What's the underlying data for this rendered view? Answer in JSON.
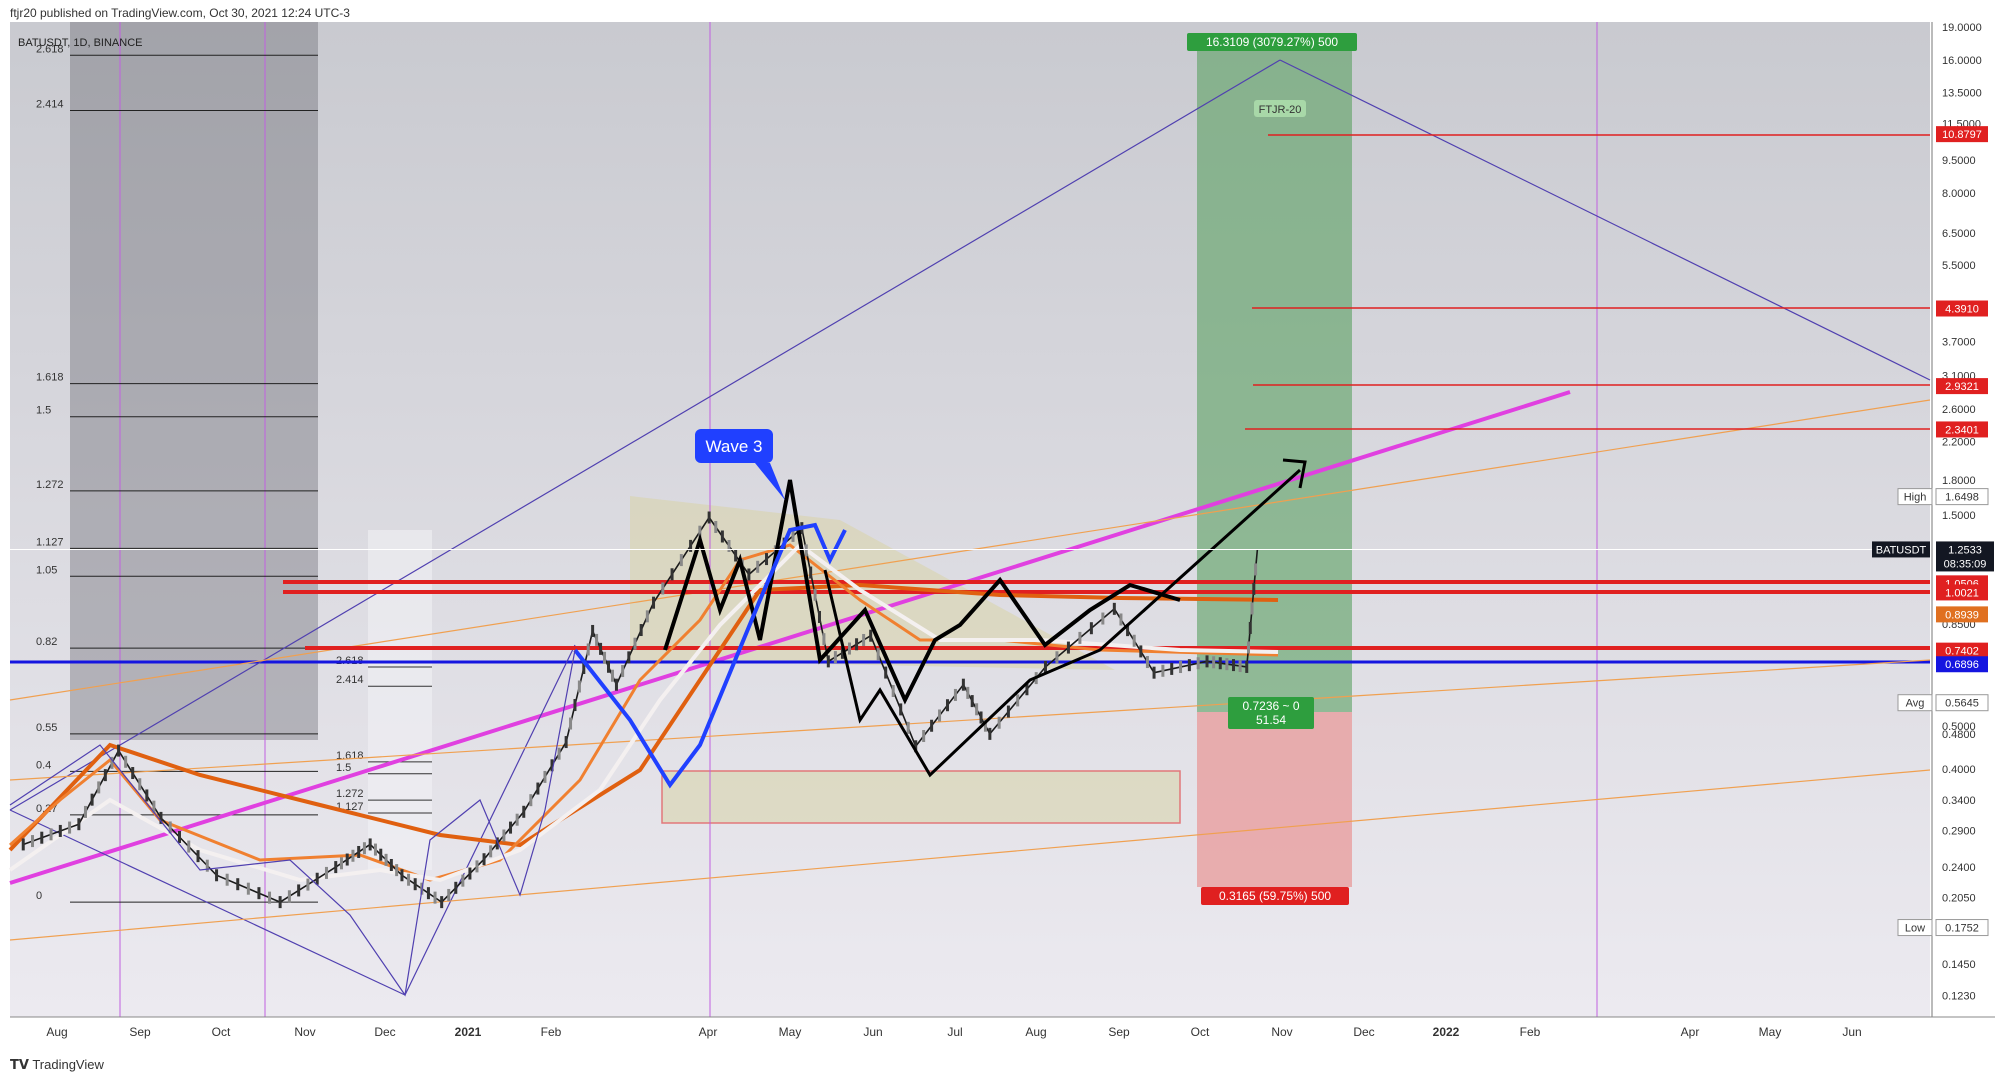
{
  "header": {
    "publisher_line": "ftjr20 published on TradingView.com, Oct 30, 2021 12:24 UTC-3"
  },
  "symbol_line": "BATUSDT, 1D, BINANCE",
  "footer": {
    "logo_text": "TradingView"
  },
  "colors": {
    "background_top": "#c9cad0",
    "background_bottom": "#e6e6ee",
    "fib_box": "#5b5b64",
    "target_green": "#5aa060",
    "stop_red": "#e89a9a",
    "magenta_trend": "#e040e0",
    "blue_support": "#1515e0",
    "red_level": "#e02020",
    "orange_ma": "#e07020",
    "purple_line": "#5040b0",
    "black_path": "#000000",
    "blue_wave": "#2040ff"
  },
  "chart_data": {
    "type": "line",
    "title": "",
    "scale": "log",
    "x_axis_labels": [
      "Aug",
      "Sep",
      "Oct",
      "Nov",
      "Dec",
      "2021",
      "Feb",
      "Apr",
      "May",
      "Jun",
      "Jul",
      "Aug",
      "Sep",
      "Oct",
      "Nov",
      "Dec",
      "2022",
      "Feb",
      "Apr",
      "May",
      "Jun"
    ],
    "y_axis_ticks": [
      "19.0000",
      "16.0000",
      "13.5000",
      "11.5000",
      "9.5000",
      "8.0000",
      "6.5000",
      "5.5000",
      "3.7000",
      "3.1000",
      "2.6000",
      "2.2000",
      "1.8000",
      "1.5000",
      "1.2533",
      "0.8500",
      "0.5000",
      "0.4800",
      "0.4000",
      "0.3400",
      "0.2900",
      "0.2400",
      "0.2050",
      "0.1450",
      "0.1230"
    ],
    "ylim": [
      0.11,
      19.5
    ],
    "price_badges": [
      {
        "label": "10.8797",
        "value": 10.8797,
        "color": "#e02020"
      },
      {
        "label": "4.3910",
        "value": 4.391,
        "color": "#e02020"
      },
      {
        "label": "2.9321",
        "value": 2.9321,
        "color": "#e02020"
      },
      {
        "label": "2.3401",
        "value": 2.3401,
        "color": "#e02020"
      },
      {
        "label": "1.0506",
        "value": 1.0506,
        "color": "#e02020"
      },
      {
        "label": "1.0021",
        "value": 1.0021,
        "color": "#e02020"
      },
      {
        "label": "0.8939",
        "value": 0.8939,
        "color": "#e07020"
      },
      {
        "label": "0.7402",
        "value": 0.7402,
        "color": "#e02020"
      },
      {
        "label": "0.6896",
        "value": 0.6896,
        "color": "#1515e0"
      }
    ],
    "last_price": {
      "symbol": "BATUSDT",
      "value": "1.2533",
      "countdown": "08:35:09"
    },
    "high": {
      "label": "High",
      "value": "1.6498"
    },
    "avg": {
      "label": "Avg",
      "value": "0.5645"
    },
    "low": {
      "label": "Low",
      "value": "0.1752"
    },
    "fib_levels_left": [
      {
        "label": "2.618",
        "value": 16.4
      },
      {
        "label": "2.414",
        "value": 12.3
      },
      {
        "label": "1.618",
        "value": 2.97
      },
      {
        "label": "1.5",
        "value": 2.5
      },
      {
        "label": "1.272",
        "value": 1.7
      },
      {
        "label": "1.127",
        "value": 1.26
      },
      {
        "label": "1.05",
        "value": 1.09
      },
      {
        "label": "0.82",
        "value": 0.75
      },
      {
        "label": "0.55",
        "value": 0.48
      },
      {
        "label": "0.4",
        "value": 0.395
      },
      {
        "label": "0.27",
        "value": 0.315
      },
      {
        "label": "0",
        "value": 0.2
      }
    ],
    "fib_levels_inner": [
      {
        "label": "2.618",
        "value": 0.68
      },
      {
        "label": "2.414",
        "value": 0.615
      },
      {
        "label": "1.618",
        "value": 0.415
      },
      {
        "label": "1.5",
        "value": 0.39
      },
      {
        "label": "1.272",
        "value": 0.34
      },
      {
        "label": "1.127",
        "value": 0.318
      }
    ],
    "target_label": "16.3109 (3079.27%) 500",
    "stop_label": "0.3165 (59.75%) 500",
    "risk_reward_label": [
      "0.7236 ~ 0",
      "51.54"
    ],
    "wave_callout": "Wave 3",
    "watermark_tag": "FTJR-20",
    "close_series": [
      {
        "date": "2020-07-20",
        "price": 0.27
      },
      {
        "date": "2020-08-10",
        "price": 0.3
      },
      {
        "date": "2020-08-25",
        "price": 0.44
      },
      {
        "date": "2020-09-10",
        "price": 0.31
      },
      {
        "date": "2020-10-01",
        "price": 0.23
      },
      {
        "date": "2020-10-25",
        "price": 0.2
      },
      {
        "date": "2020-11-15",
        "price": 0.24
      },
      {
        "date": "2020-11-28",
        "price": 0.27
      },
      {
        "date": "2020-12-10",
        "price": 0.23
      },
      {
        "date": "2020-12-25",
        "price": 0.2
      },
      {
        "date": "2021-01-10",
        "price": 0.25
      },
      {
        "date": "2021-01-25",
        "price": 0.32
      },
      {
        "date": "2021-02-10",
        "price": 0.46
      },
      {
        "date": "2021-02-20",
        "price": 0.82
      },
      {
        "date": "2021-03-01",
        "price": 0.62
      },
      {
        "date": "2021-03-15",
        "price": 0.95
      },
      {
        "date": "2021-04-05",
        "price": 1.48
      },
      {
        "date": "2021-04-20",
        "price": 1.1
      },
      {
        "date": "2021-05-10",
        "price": 1.4
      },
      {
        "date": "2021-05-20",
        "price": 0.7
      },
      {
        "date": "2021-06-05",
        "price": 0.8
      },
      {
        "date": "2021-06-22",
        "price": 0.45
      },
      {
        "date": "2021-07-10",
        "price": 0.62
      },
      {
        "date": "2021-07-20",
        "price": 0.48
      },
      {
        "date": "2021-08-10",
        "price": 0.68
      },
      {
        "date": "2021-09-05",
        "price": 0.92
      },
      {
        "date": "2021-09-20",
        "price": 0.66
      },
      {
        "date": "2021-10-10",
        "price": 0.7
      },
      {
        "date": "2021-10-25",
        "price": 0.68
      },
      {
        "date": "2021-10-29",
        "price": 1.25
      }
    ]
  }
}
